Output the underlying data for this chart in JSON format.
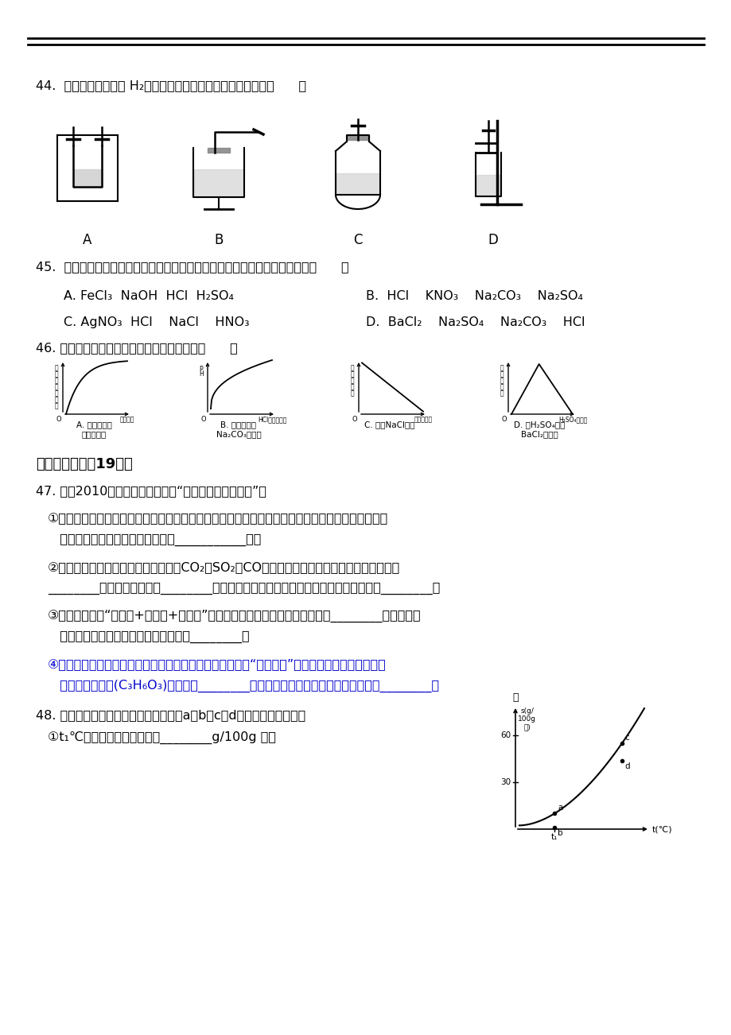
{
  "bg_color": "#ffffff",
  "text_color": "#000000",
  "highlight_color": "#0000cc",
  "q44_text": "44.  能用于实验室制取 H₂，并能随开随用、随关随停的装置是（      ）",
  "q45_text": "45.  不另选试剂，仅利用组内物质之间的相互反应，就能将它们鉴别出来的是（      ）",
  "q45_A": "A. FeCl₃  NaOH  HCl  H₂SO₄",
  "q45_B": "B.  HCl    KNO₃    Na₂CO₃    Na₂SO₄",
  "q45_C": "C. AgNO₃  HCl    NaCl    HNO₃",
  "q45_D": "D.  BaCl₂    Na₂SO₄    Na₂CO₃    HCl",
  "q46_text": "46. 能反映相关实验过程中量的变化的图象是（      ）",
  "q46_A_label1": "A. 大理石投入",
  "q46_A_label2": "足量盐酸中",
  "q46_B_label1": "B. 稀盐酸滴入",
  "q46_B_label2": "Na₂CO₃溶液中",
  "q46_C_label1": "C. 稀释NaCl溶液",
  "q46_C_label2": "",
  "q46_D_label1": "D. 稀H₂SO₄滴入",
  "q46_D_label2": "BaCl₂溶液中",
  "q46_A_xlabel": "反应时间",
  "q46_A_ylabel": "固体减少的质量",
  "q46_B_xlabel": "HCl的物质的量",
  "q46_B_ylabel": "pH",
  "q46_C_xlabel": "加水的质量",
  "q46_C_ylabel": "溶液的密度",
  "q46_D_xlabel": "H₂SO₄的质量",
  "q46_D_ylabel": "沉淠的质量",
  "section7_title": "七、填空题（全19分）",
  "q47_text": "47. 中国2010上海世博会的主题是“城市，让生活更美好”。",
  "q47_1": "①在世博会开幕式上举行了上海有史以来最为盛大的一次焊火表演，光彩夺目的焊火离不开多种元素",
  "q47_1b": "   的焊色反应，其中钉元素的焊色呼___________色。",
  "q47_2": "②世博园区内使用电动车，有效减少了CO₂、SO₂、CO的排放，这些物质中会引起温室效应的是",
  "q47_2b": "________，会造成酸雨的是________，能与血液里的血红蛋白结合，造成人体中毒的是________。",
  "q47_3": "③世博园区内用“活性炭+超滤膜+紫外线”组合工艺获得直饮水。其中活性炭起________作用；用紫",
  "q47_3b": "   外线代替氯气对水进行处理，其作用是________。",
  "q47_4a": "④世博会上所使用的饭盒、胸卡、证件等都用可完全降解的“玉米塑料”制成，制作的第一步是将玉",
  "q47_4b": "   米发酵制得乳酸(C₃H₆O₃)。乳酸由________种元素组成，其中碳元素的质量分数为________。",
  "q48_text": "48. 甲物质在水中的溶解度曲线如右图，a、b、c、d为图象中的四个点。",
  "q48_1": "①t₁℃时，甲物质的溶解度是________g/100g 水。"
}
